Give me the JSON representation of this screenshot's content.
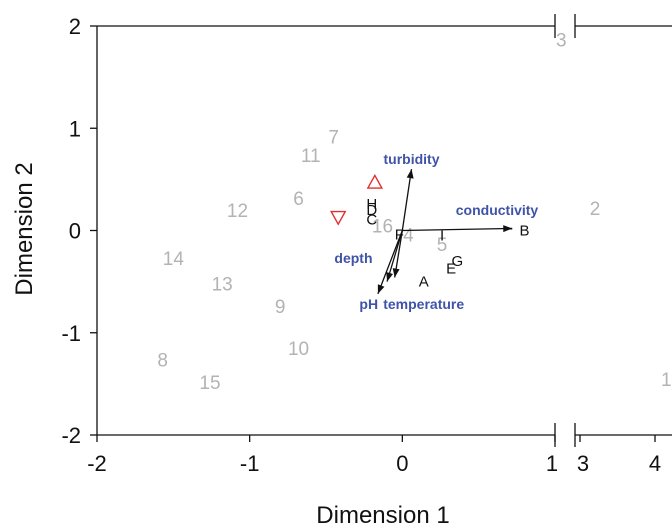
{
  "chart_data": {
    "type": "scatter",
    "title": "",
    "xlabel": "Dimension 1",
    "ylabel": "Dimension 2",
    "xlim": [
      -2,
      4
    ],
    "ylim": [
      -2,
      2
    ],
    "axis_break": {
      "x_from": 1,
      "x_to": 3,
      "y_break_at": 1
    },
    "x_ticks": [
      "-2",
      "-1",
      "0",
      "1",
      "3",
      "4"
    ],
    "x_tick_values": [
      -2,
      -1,
      0,
      1,
      3,
      4
    ],
    "y_ticks": [
      "2",
      "1",
      "0",
      "-1",
      "-2"
    ],
    "y_tick_values": [
      2,
      1,
      0,
      -1,
      -2
    ],
    "grid": false,
    "colors": {
      "sites": "#b3b3b3",
      "species": "#111111",
      "vectors": "#3f53a8",
      "triangles": "#e0302c",
      "arrows": "#111111"
    },
    "sites": [
      {
        "label": "1",
        "x": 4.15,
        "y": -1.45
      },
      {
        "label": "2",
        "x": 3.2,
        "y": 0.22
      },
      {
        "label": "3",
        "x": 2.75,
        "y": 1.87
      },
      {
        "label": "4",
        "x": 0.04,
        "y": -0.04
      },
      {
        "label": "5",
        "x": 0.26,
        "y": -0.13
      },
      {
        "label": "6",
        "x": -0.68,
        "y": 0.32
      },
      {
        "label": "7",
        "x": -0.45,
        "y": 0.92
      },
      {
        "label": "8",
        "x": -1.57,
        "y": -1.26
      },
      {
        "label": "9",
        "x": -0.8,
        "y": -0.74
      },
      {
        "label": "10",
        "x": -0.68,
        "y": -1.15
      },
      {
        "label": "11",
        "x": -0.6,
        "y": 0.74
      },
      {
        "label": "12",
        "x": -1.08,
        "y": 0.2
      },
      {
        "label": "13",
        "x": -1.18,
        "y": -0.52
      },
      {
        "label": "14",
        "x": -1.5,
        "y": -0.27
      },
      {
        "label": "15",
        "x": -1.26,
        "y": -1.48
      },
      {
        "label": "16",
        "x": -0.13,
        "y": 0.05
      }
    ],
    "species": [
      {
        "label": "A",
        "x": 0.14,
        "y": -0.5
      },
      {
        "label": "B",
        "x": 0.8,
        "y": 0.0
      },
      {
        "label": "C",
        "x": -0.2,
        "y": 0.11
      },
      {
        "label": "D",
        "x": -0.2,
        "y": 0.2
      },
      {
        "label": "E",
        "x": 0.32,
        "y": -0.37
      },
      {
        "label": "F",
        "x": -0.02,
        "y": -0.04
      },
      {
        "label": "G",
        "x": 0.36,
        "y": -0.3
      },
      {
        "label": "H",
        "x": -0.2,
        "y": 0.26
      },
      {
        "label": "I",
        "x": 0.26,
        "y": -0.05
      }
    ],
    "vectors": [
      {
        "label": "turbidity",
        "x": 0.06,
        "y": 0.6,
        "label_x": 0.06,
        "label_y": 0.7
      },
      {
        "label": "conductivity",
        "x": 0.72,
        "y": 0.02,
        "label_x": 0.62,
        "label_y": 0.2
      },
      {
        "label": "depth",
        "x": -0.1,
        "y": -0.5,
        "label_x": -0.32,
        "label_y": -0.27
      },
      {
        "label": "pH",
        "x": -0.16,
        "y": -0.62,
        "label_x": -0.22,
        "label_y": -0.72
      },
      {
        "label": "temperature",
        "x": -0.05,
        "y": -0.46,
        "label_x": 0.14,
        "label_y": -0.72
      }
    ],
    "triangles": [
      {
        "direction": "up",
        "x": -0.18,
        "y": 0.47
      },
      {
        "direction": "down",
        "x": -0.42,
        "y": 0.13
      }
    ]
  }
}
